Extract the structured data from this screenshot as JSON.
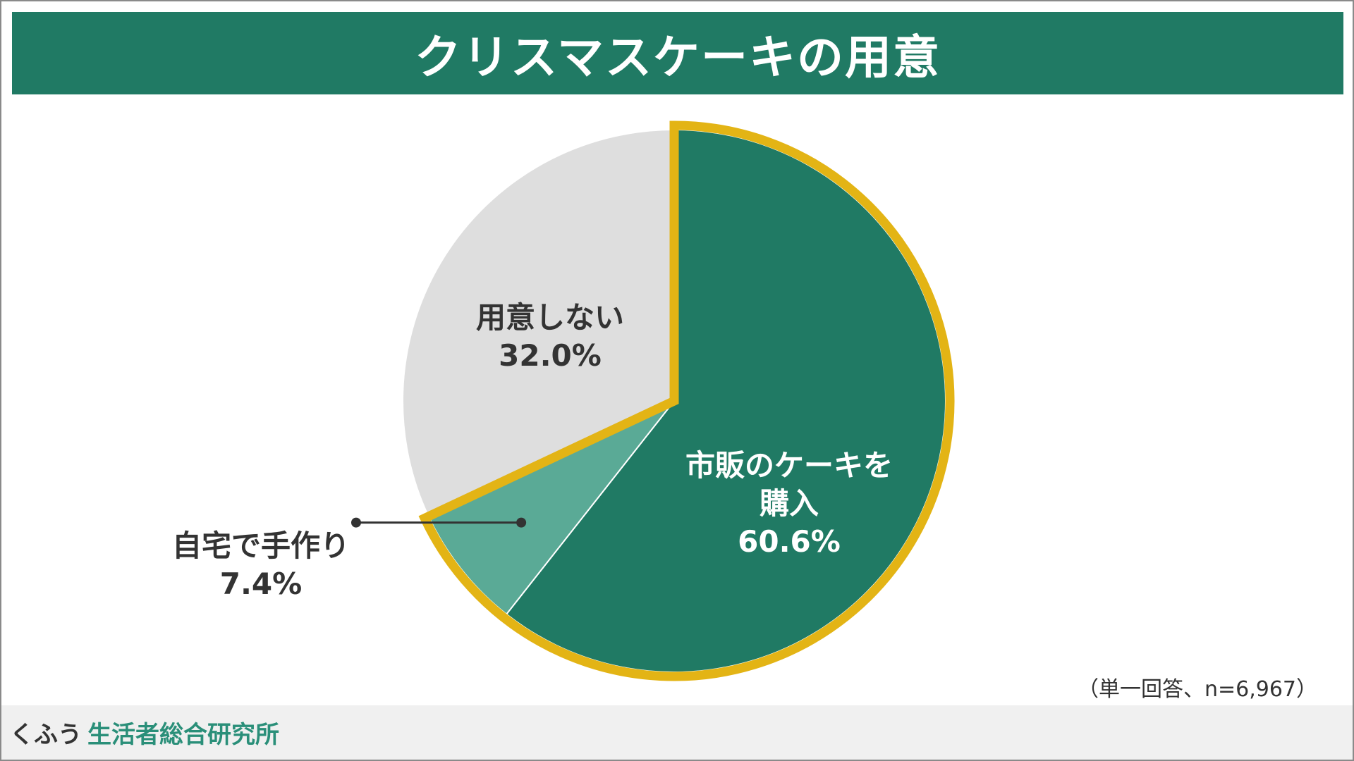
{
  "header": {
    "title": "クリスマスケーキの用意",
    "bg_color": "#207a64"
  },
  "chart_data": {
    "type": "pie",
    "title": "クリスマスケーキの用意",
    "start_angle_deg": 0,
    "direction": "clockwise",
    "slices": [
      {
        "label_lines": [
          "市販のケーキを",
          "購入"
        ],
        "value": 60.6,
        "value_label": "60.6%",
        "color": "#207a64",
        "label_color": "#ffffff",
        "highlight": true
      },
      {
        "label_lines": [
          "自宅で手作り"
        ],
        "value": 7.4,
        "value_label": "7.4%",
        "color": "#5aaa96",
        "label_color": "#333333",
        "highlight": true,
        "callout": true
      },
      {
        "label_lines": [
          "用意しない"
        ],
        "value": 32.0,
        "value_label": "32.0%",
        "color": "#dedede",
        "label_color": "#333333",
        "highlight": false
      }
    ],
    "highlight_outline_color": "#e3b415",
    "note": "（単一回答、n=6,967）"
  },
  "footer": {
    "brand_kana": "くふう",
    "brand_name": "生活者総合研究所",
    "brand_name_color": "#2a8f79",
    "bg_color": "#f0f0f0"
  }
}
